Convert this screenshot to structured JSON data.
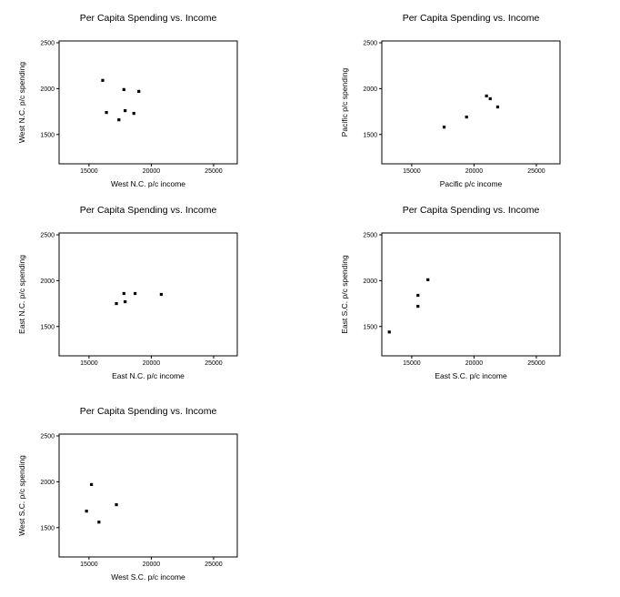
{
  "chart_data": [
    {
      "type": "scatter",
      "title": "Per Capita Spending vs. Income",
      "xlabel": "West N.C. p/c income",
      "ylabel": "West N.C. p/c spending",
      "xlim": [
        12600,
        26900
      ],
      "ylim": [
        1180,
        2520
      ],
      "xticks": [
        15000,
        20000,
        25000
      ],
      "yticks": [
        1500,
        2000,
        2500
      ],
      "points": [
        {
          "x": 16100,
          "y": 2090
        },
        {
          "x": 16400,
          "y": 1740
        },
        {
          "x": 17400,
          "y": 1660
        },
        {
          "x": 17800,
          "y": 1990
        },
        {
          "x": 17900,
          "y": 1760
        },
        {
          "x": 18600,
          "y": 1730
        },
        {
          "x": 19000,
          "y": 1970
        }
      ]
    },
    {
      "type": "scatter",
      "title": "Per Capita Spending vs. Income",
      "xlabel": "Pacific p/c income",
      "ylabel": "Pacific p/c spending",
      "xlim": [
        12600,
        26900
      ],
      "ylim": [
        1180,
        2520
      ],
      "xticks": [
        15000,
        20000,
        25000
      ],
      "yticks": [
        1500,
        2000,
        2500
      ],
      "points": [
        {
          "x": 17600,
          "y": 1580
        },
        {
          "x": 19400,
          "y": 1690
        },
        {
          "x": 21000,
          "y": 1920
        },
        {
          "x": 21300,
          "y": 1890
        },
        {
          "x": 21900,
          "y": 1800
        }
      ]
    },
    {
      "type": "scatter",
      "title": "Per Capita Spending vs. Income",
      "xlabel": "East N.C. p/c income",
      "ylabel": "East N.C. p/c spending",
      "xlim": [
        12600,
        26900
      ],
      "ylim": [
        1180,
        2520
      ],
      "xticks": [
        15000,
        20000,
        25000
      ],
      "yticks": [
        1500,
        2000,
        2500
      ],
      "points": [
        {
          "x": 17200,
          "y": 1750
        },
        {
          "x": 17800,
          "y": 1860
        },
        {
          "x": 17900,
          "y": 1770
        },
        {
          "x": 18700,
          "y": 1860
        },
        {
          "x": 20800,
          "y": 1850
        }
      ]
    },
    {
      "type": "scatter",
      "title": "Per Capita Spending vs. Income",
      "xlabel": "East S.C. p/c income",
      "ylabel": "East S.C. p/c spending",
      "xlim": [
        12600,
        26900
      ],
      "ylim": [
        1180,
        2520
      ],
      "xticks": [
        15000,
        20000,
        25000
      ],
      "yticks": [
        1500,
        2000,
        2500
      ],
      "points": [
        {
          "x": 13200,
          "y": 1440
        },
        {
          "x": 15500,
          "y": 1720
        },
        {
          "x": 15500,
          "y": 1840
        },
        {
          "x": 16300,
          "y": 2010
        }
      ]
    },
    {
      "type": "scatter",
      "title": "Per Capita Spending vs. Income",
      "xlabel": "West S.C. p/c income",
      "ylabel": "West S.C. p/c spending",
      "xlim": [
        12600,
        26900
      ],
      "ylim": [
        1180,
        2520
      ],
      "xticks": [
        15000,
        20000,
        25000
      ],
      "yticks": [
        1500,
        2000,
        2500
      ],
      "points": [
        {
          "x": 14800,
          "y": 1680
        },
        {
          "x": 15200,
          "y": 1970
        },
        {
          "x": 15800,
          "y": 1560
        },
        {
          "x": 17200,
          "y": 1750
        }
      ]
    }
  ],
  "marker_color": "#000000"
}
